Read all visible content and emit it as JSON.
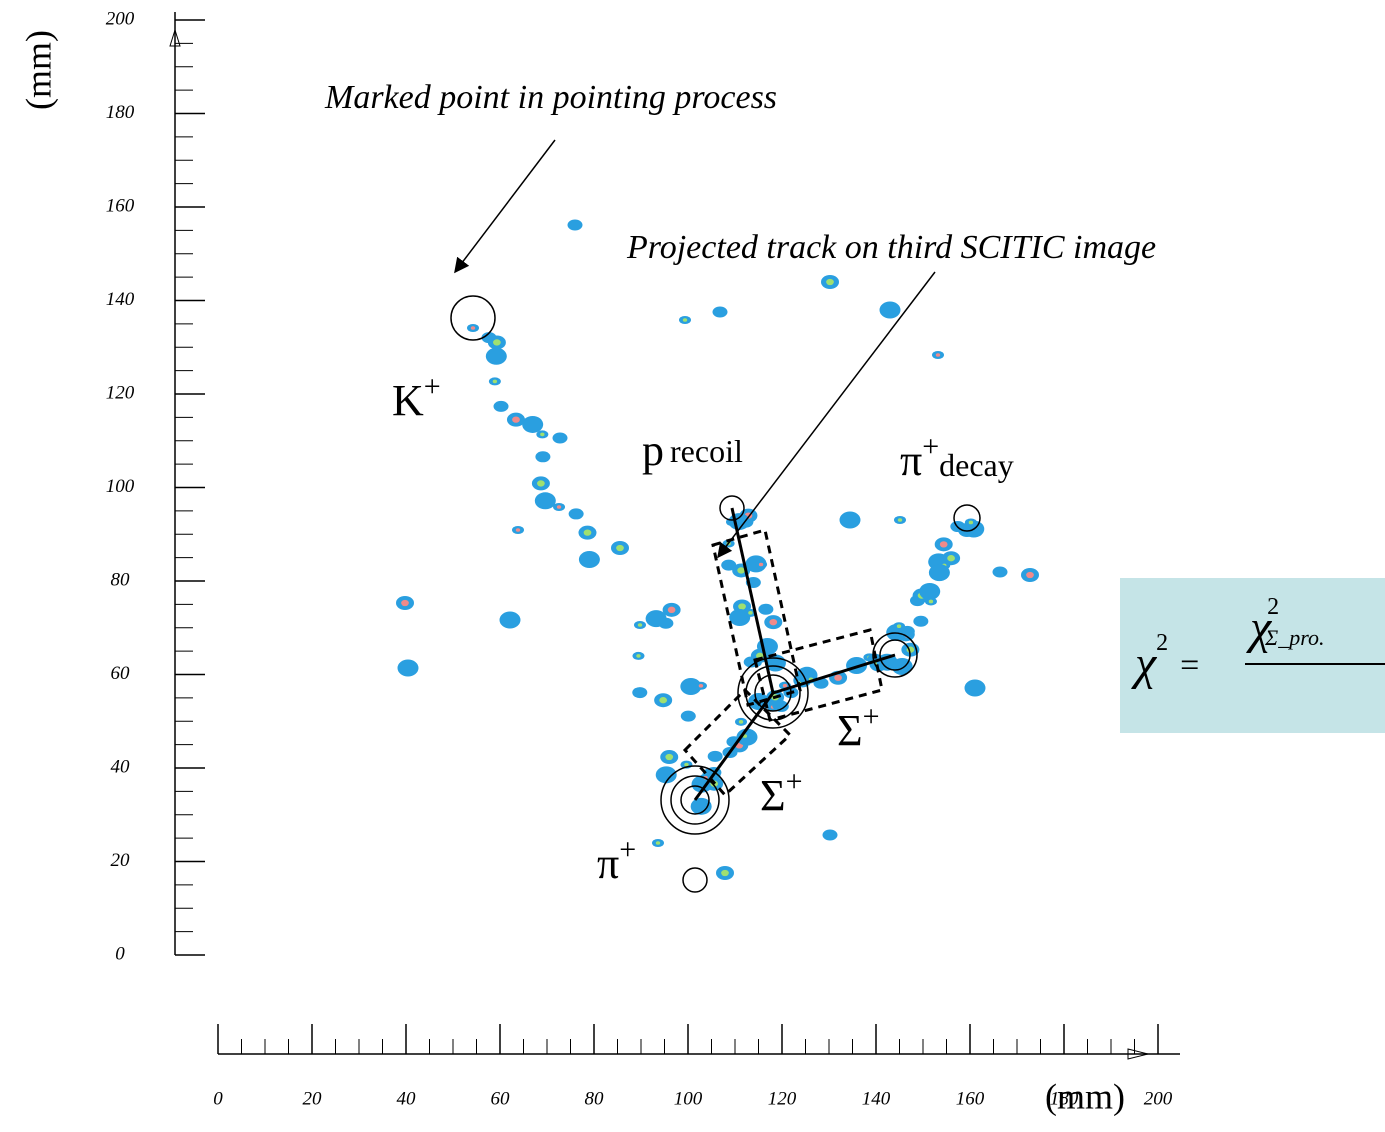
{
  "chart_data": {
    "type": "image",
    "x_label": "(mm)",
    "y_label": "(mm)",
    "xlim": [
      0,
      200
    ],
    "ylim": [
      0,
      200
    ],
    "xticks": [
      0,
      20,
      40,
      60,
      80,
      100,
      120,
      140,
      160,
      180,
      200
    ],
    "yticks": [
      0,
      20,
      40,
      60,
      80,
      100,
      120,
      140,
      160,
      180,
      200
    ],
    "annotations": [
      "Marked point in pointing process",
      "Projected track on third SCITIC image"
    ],
    "particles": {
      "kaon": {
        "symbol": "K",
        "sup": "+"
      },
      "proton": {
        "symbol": "p",
        "sub": "recoil"
      },
      "pion_decay": {
        "symbol": "π",
        "sup": "+",
        "sub": "decay"
      },
      "sigma_1": {
        "symbol": "Σ",
        "sup": "+"
      },
      "sigma_2": {
        "symbol": "Σ",
        "sup": "+"
      },
      "pion": {
        "symbol": "π",
        "sup": "+"
      }
    },
    "formula": {
      "lhs": "χ",
      "lhs_sup": "2",
      "eq": "=",
      "num": "χ",
      "num_sup": "2",
      "num_sub": "Σ_pro."
    }
  }
}
